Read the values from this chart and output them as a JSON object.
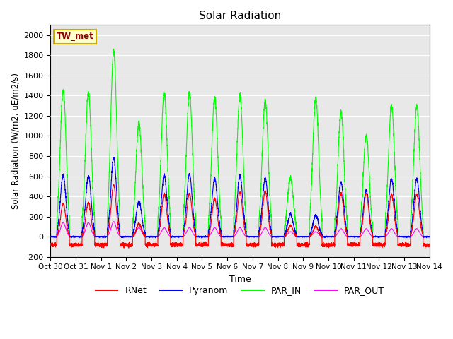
{
  "title": "Solar Radiation",
  "xlabel": "Time",
  "ylabel": "Solar Radiation (W/m2, uE/m2/s)",
  "ylim": [
    -200,
    2100
  ],
  "yticks": [
    -200,
    0,
    200,
    400,
    600,
    800,
    1000,
    1200,
    1400,
    1600,
    1800,
    2000
  ],
  "x_tick_labels": [
    "Oct 30",
    "Oct 31",
    "Nov 1",
    "Nov 2",
    "Nov 3",
    "Nov 4",
    "Nov 5",
    "Nov 6",
    "Nov 7",
    "Nov 8",
    "Nov 9",
    "Nov 10",
    "Nov 11",
    "Nov 12",
    "Nov 13",
    "Nov 14"
  ],
  "station_label": "TW_met",
  "colors": {
    "RNet": "#ff0000",
    "Pyranom": "#0000ff",
    "PAR_IN": "#00ff00",
    "PAR_OUT": "#ff00ff"
  },
  "background_color": "#e8e8e8",
  "n_days": 15,
  "peaks_PAR_IN": [
    1450,
    1430,
    1840,
    1120,
    1430,
    1430,
    1380,
    1400,
    1350,
    580,
    1370,
    1240,
    1000,
    1300,
    1290
  ],
  "peaks_Pyranom": [
    610,
    600,
    780,
    350,
    610,
    620,
    580,
    600,
    580,
    220,
    210,
    540,
    460,
    570,
    570
  ],
  "peaks_RNet": [
    330,
    340,
    510,
    130,
    430,
    430,
    380,
    440,
    450,
    110,
    100,
    430,
    430,
    420,
    420
  ],
  "peaks_PAR_OUT": [
    140,
    140,
    150,
    90,
    90,
    90,
    90,
    90,
    90,
    50,
    50,
    80,
    80,
    80,
    80
  ],
  "night_RNet": -80,
  "figsize": [
    6.4,
    4.8
  ],
  "dpi": 100
}
